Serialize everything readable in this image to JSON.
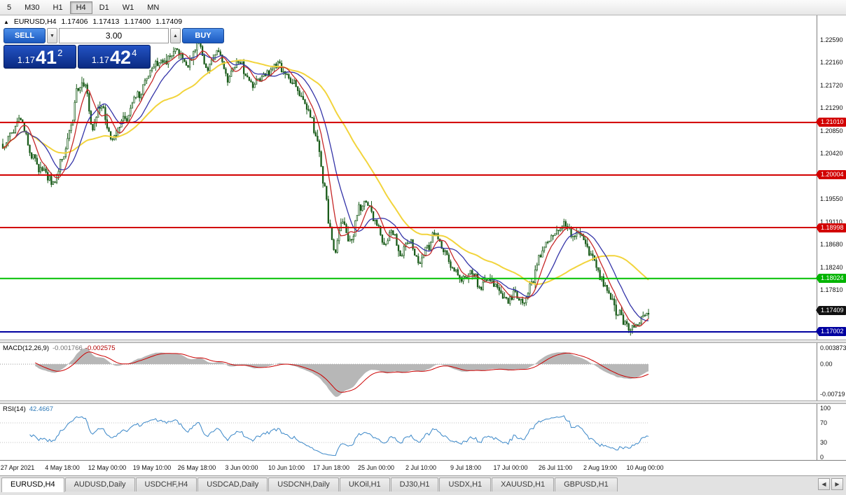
{
  "toolbar": {
    "timeframes": [
      {
        "label": "5",
        "active": false
      },
      {
        "label": "M30",
        "active": false
      },
      {
        "label": "H1",
        "active": false
      },
      {
        "label": "H4",
        "active": true
      },
      {
        "label": "D1",
        "active": false
      },
      {
        "label": "W1",
        "active": false
      },
      {
        "label": "MN",
        "active": false
      }
    ]
  },
  "chart_header": {
    "toggle_icon": "▲",
    "symbol": "EURUSD,H4",
    "open": "1.17406",
    "high": "1.17413",
    "low": "1.17400",
    "close": "1.17409"
  },
  "trade_panel": {
    "sell_label": "SELL",
    "buy_label": "BUY",
    "volume": "3.00",
    "volume_down_icon": "▼",
    "volume_up_icon": "▲",
    "sell_price": {
      "prefix": "1.17",
      "big": "41",
      "sup": "2"
    },
    "buy_price": {
      "prefix": "1.17",
      "big": "42",
      "sup": "4"
    }
  },
  "price_scale": {
    "ticks": [
      "1.22590",
      "1.22160",
      "1.21720",
      "1.21290",
      "1.20850",
      "1.20420",
      "1.19550",
      "1.19110",
      "1.18680",
      "1.18240",
      "1.17810"
    ],
    "badges": [
      {
        "text": "1.21010",
        "color": "#d20000"
      },
      {
        "text": "1.20004",
        "color": "#d20000"
      },
      {
        "text": "1.18998",
        "color": "#d20000"
      },
      {
        "text": "1.18024",
        "color": "#00b400"
      },
      {
        "text": "1.17409",
        "color": "#111111"
      },
      {
        "text": "1.17002",
        "color": "#0000a0"
      }
    ]
  },
  "chart_data": {
    "type": "candlestick",
    "symbol": "EURUSD",
    "timeframe": "H4",
    "ohlc_current": {
      "open": 1.17406,
      "high": 1.17413,
      "low": 1.174,
      "close": 1.17409
    },
    "visible_price_range": {
      "top": 1.23059,
      "bottom": 1.16854
    },
    "candle_count": 360,
    "seed": 20210810,
    "price_path_anchors": [
      [
        0.0,
        1.2055
      ],
      [
        0.012,
        1.2078
      ],
      [
        0.028,
        1.2108
      ],
      [
        0.044,
        1.2038
      ],
      [
        0.062,
        1.2005
      ],
      [
        0.078,
        1.1985
      ],
      [
        0.092,
        1.203
      ],
      [
        0.104,
        1.2085
      ],
      [
        0.115,
        1.216
      ],
      [
        0.125,
        1.2178
      ],
      [
        0.14,
        1.2092
      ],
      [
        0.152,
        1.2135
      ],
      [
        0.168,
        1.2068
      ],
      [
        0.19,
        1.211
      ],
      [
        0.21,
        1.2155
      ],
      [
        0.235,
        1.2215
      ],
      [
        0.252,
        1.2218
      ],
      [
        0.27,
        1.2238
      ],
      [
        0.285,
        1.221
      ],
      [
        0.302,
        1.2252
      ],
      [
        0.318,
        1.2205
      ],
      [
        0.332,
        1.2238
      ],
      [
        0.348,
        1.2185
      ],
      [
        0.365,
        1.2218
      ],
      [
        0.385,
        1.2172
      ],
      [
        0.405,
        1.219
      ],
      [
        0.425,
        1.2212
      ],
      [
        0.448,
        1.218
      ],
      [
        0.462,
        1.2155
      ],
      [
        0.476,
        1.2118
      ],
      [
        0.487,
        1.2062
      ],
      [
        0.497,
        1.1985
      ],
      [
        0.506,
        1.1908
      ],
      [
        0.513,
        1.1852
      ],
      [
        0.527,
        1.1912
      ],
      [
        0.538,
        1.1872
      ],
      [
        0.553,
        1.194
      ],
      [
        0.565,
        1.195
      ],
      [
        0.578,
        1.1908
      ],
      [
        0.59,
        1.1868
      ],
      [
        0.603,
        1.1894
      ],
      [
        0.617,
        1.185
      ],
      [
        0.63,
        1.1872
      ],
      [
        0.643,
        1.1836
      ],
      [
        0.656,
        1.1858
      ],
      [
        0.67,
        1.189
      ],
      [
        0.684,
        1.1855
      ],
      [
        0.698,
        1.182
      ],
      [
        0.712,
        1.18
      ],
      [
        0.726,
        1.1818
      ],
      [
        0.74,
        1.1786
      ],
      [
        0.754,
        1.1802
      ],
      [
        0.768,
        1.1778
      ],
      [
        0.781,
        1.176
      ],
      [
        0.794,
        1.1774
      ],
      [
        0.807,
        1.1754
      ],
      [
        0.819,
        1.1792
      ],
      [
        0.832,
        1.1842
      ],
      [
        0.845,
        1.1874
      ],
      [
        0.858,
        1.1898
      ],
      [
        0.871,
        1.1908
      ],
      [
        0.883,
        1.1886
      ],
      [
        0.894,
        1.1894
      ],
      [
        0.904,
        1.1862
      ],
      [
        0.914,
        1.184
      ],
      [
        0.926,
        1.1802
      ],
      [
        0.939,
        1.1768
      ],
      [
        0.952,
        1.1738
      ],
      [
        0.965,
        1.1713
      ],
      [
        0.977,
        1.1704
      ],
      [
        0.988,
        1.1724
      ],
      [
        1.0,
        1.1741
      ]
    ],
    "moving_averages": [
      {
        "period": 50,
        "color": "#f2d43c",
        "width": 2
      },
      {
        "period": 18,
        "color": "#3434a8",
        "width": 1.3
      },
      {
        "period": 8,
        "color": "#c62828",
        "width": 1.3
      }
    ],
    "horizontal_levels": [
      {
        "price": 1.2101,
        "color": "#d20000",
        "width": 2
      },
      {
        "price": 1.20004,
        "color": "#d20000",
        "width": 2
      },
      {
        "price": 1.18998,
        "color": "#d20000",
        "width": 2
      },
      {
        "price": 1.18024,
        "color": "#00c000",
        "width": 2
      },
      {
        "price": 1.17002,
        "color": "#0000a0",
        "width": 2
      }
    ],
    "candle_colors": {
      "stroke": "#1a5c1a",
      "bull_fill": "#ffffff",
      "bear_fill": "#1a5c1a"
    }
  },
  "macd_panel": {
    "name": "MACD(12,26,9)",
    "value_main": "-0.001766",
    "value_signal": "-0.002575",
    "ticks": [
      {
        "text": "0.003873",
        "value": 0.003873
      },
      {
        "text": "0.00",
        "value": 0
      },
      {
        "text": "-0.00719",
        "value": -0.00719
      }
    ],
    "histogram_color": "#b7b7b7",
    "signal_color": "#cc0000"
  },
  "rsi_panel": {
    "name": "RSI(14)",
    "value": "42.4667",
    "ticks": [
      {
        "text": "100",
        "value": 100
      },
      {
        "text": "70",
        "value": 70
      },
      {
        "text": "30",
        "value": 30
      },
      {
        "text": "0",
        "value": 0
      }
    ],
    "line_color": "#3a87c8"
  },
  "time_axis": [
    "27 Apr 2021",
    "4 May 18:00",
    "12 May 00:00",
    "19 May 10:00",
    "26 May 18:00",
    "3 Jun 00:00",
    "10 Jun 10:00",
    "17 Jun 18:00",
    "25 Jun 00:00",
    "2 Jul 10:00",
    "9 Jul 18:00",
    "17 Jul 00:00",
    "26 Jul 11:00",
    "2 Aug 19:00",
    "10 Aug 00:00"
  ],
  "tabs": [
    {
      "label": "EURUSD,H4",
      "active": true
    },
    {
      "label": "AUDUSD,Daily",
      "active": false
    },
    {
      "label": "USDCHF,H4",
      "active": false
    },
    {
      "label": "USDCAD,Daily",
      "active": false
    },
    {
      "label": "USDCNH,Daily",
      "active": false
    },
    {
      "label": "UKOil,H1",
      "active": false
    },
    {
      "label": "DJ30,H1",
      "active": false
    },
    {
      "label": "USDX,H1",
      "active": false
    },
    {
      "label": "XAUUSD,H1",
      "active": false
    },
    {
      "label": "GBPUSD,H1",
      "active": false
    }
  ],
  "tab_scroll": {
    "left": "◀",
    "right": "▶"
  }
}
